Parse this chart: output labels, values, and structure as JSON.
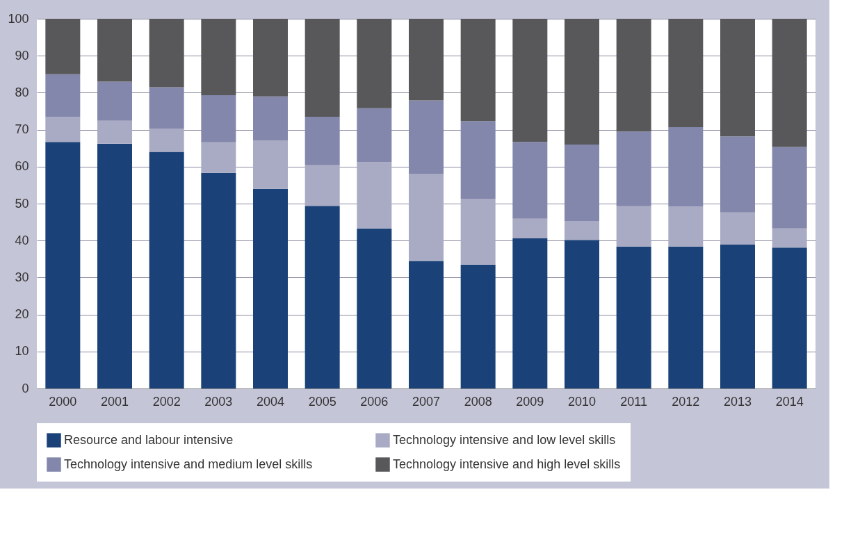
{
  "chart_data": {
    "type": "bar",
    "stacked": true,
    "categories": [
      "2000",
      "2001",
      "2002",
      "2003",
      "2004",
      "2005",
      "2006",
      "2007",
      "2008",
      "2009",
      "2010",
      "2011",
      "2012",
      "2013",
      "2014"
    ],
    "series": [
      {
        "name": "Resource and labour intensive",
        "color": "#1a4178",
        "values": [
          66.7,
          66.2,
          64,
          58.3,
          54,
          49.4,
          43.3,
          34.5,
          33.5,
          40.6,
          40.2,
          38.4,
          38.4,
          38.9,
          38.1
        ]
      },
      {
        "name": "Technology intensive and low level skills",
        "color": "#a9abc4",
        "values": [
          6.7,
          6.2,
          6.2,
          8.3,
          13,
          11,
          17.9,
          23.6,
          17.8,
          5.3,
          5.1,
          10.9,
          10.8,
          8.7,
          5.2
        ]
      },
      {
        "name": "Technology intensive and medium level skills",
        "color": "#8387ab",
        "values": [
          11.6,
          10.6,
          11.3,
          12.7,
          12,
          13.1,
          14.6,
          19.8,
          21,
          20.8,
          20.7,
          20.2,
          21.5,
          20.6,
          22
        ]
      },
      {
        "name": "Technology intensive and high level skills",
        "color": "#58585a",
        "values": [
          15,
          17,
          18.5,
          20.7,
          21,
          26.5,
          24.2,
          22.1,
          27.7,
          33.3,
          34,
          30.5,
          29.3,
          31.8,
          34.7
        ]
      }
    ],
    "ylim": [
      0,
      100
    ],
    "yticks": [
      0,
      10,
      20,
      30,
      40,
      50,
      60,
      70,
      80,
      90,
      100
    ],
    "grid": "y",
    "legend": "bottom"
  }
}
